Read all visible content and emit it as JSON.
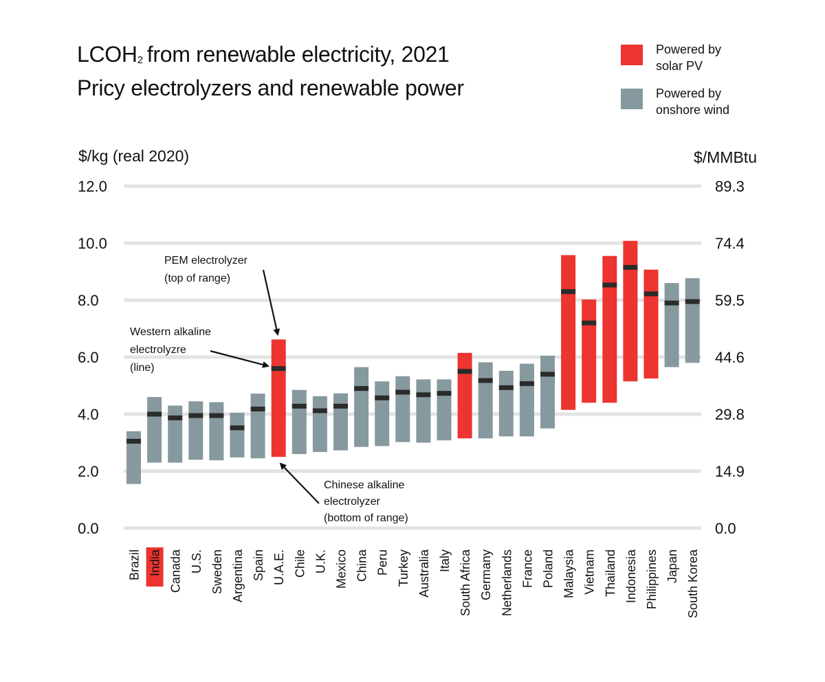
{
  "title": {
    "line1_prefix": "LCOH",
    "line1_sub": "2",
    "line1_suffix": "from renewable electricity, 2021",
    "line2": "Pricy electrolyzers and renewable power"
  },
  "legend": [
    {
      "label_line1": "Powered by",
      "label_line2": "solar PV",
      "color": "#EC3430"
    },
    {
      "label_line1": "Powered by",
      "label_line2": "onshore wind",
      "color": "#86999F"
    }
  ],
  "units": {
    "left": "$/kg (real 2020)",
    "right": "$/MMBtu"
  },
  "annotations": [
    {
      "id": "pem",
      "lines": [
        "PEM electrolyzer",
        "(top of range)"
      ]
    },
    {
      "id": "western",
      "lines": [
        "Western alkaline",
        "electrolyzre",
        "(line)"
      ]
    },
    {
      "id": "chinese",
      "lines": [
        "Chinese alkaline",
        "electrolyzer",
        "(bottom of range)"
      ]
    }
  ],
  "chart_data": {
    "type": "bar",
    "subtype": "floating-range with marker",
    "title": "LCOH2 from renewable electricity, 2021 — Pricy electrolyzers and renewable power",
    "ylabel": "$/kg (real 2020)",
    "ylabel_right": "$/MMBtu",
    "ylim": [
      0,
      12
    ],
    "yticks": [
      "0.0",
      "2.0",
      "4.0",
      "6.0",
      "8.0",
      "10.0",
      "12.0"
    ],
    "yticks_right": [
      "0.0",
      "14.9",
      "29.8",
      "44.6",
      "59.5",
      "74.4",
      "89.3"
    ],
    "grid": true,
    "legend_position": "top-right",
    "highlight_category": "India",
    "highlight_color": "#EC3430",
    "colors": {
      "solar": "#EC3430",
      "wind": "#86999F",
      "marker": "#2B2B2B",
      "grid": "#E3E3E3"
    },
    "categories": [
      "Brazil",
      "India",
      "Canada",
      "U.S.",
      "Sweden",
      "Argentina",
      "Spain",
      "U.A.E.",
      "Chile",
      "U.K.",
      "Mexico",
      "China",
      "Peru",
      "Turkey",
      "Australia",
      "Italy",
      "South Africa",
      "Germany",
      "Netherlands",
      "France",
      "Poland",
      "Malaysia",
      "Vietnam",
      "Thailand",
      "Indonesia",
      "Philippines",
      "Japan",
      "South Korea"
    ],
    "series": [
      {
        "name": "Chinese alkaline electrolyzer (bottom of range)",
        "values": [
          1.55,
          2.3,
          2.3,
          2.4,
          2.38,
          2.48,
          2.45,
          2.5,
          2.6,
          2.67,
          2.73,
          2.85,
          2.88,
          3.02,
          3.0,
          3.08,
          3.15,
          3.15,
          3.22,
          3.22,
          3.5,
          4.15,
          4.4,
          4.4,
          5.15,
          5.25,
          5.65,
          5.8
        ]
      },
      {
        "name": "Western alkaline electrolyzer (line)",
        "values": [
          3.05,
          4.0,
          3.87,
          3.95,
          3.95,
          3.52,
          4.18,
          5.6,
          4.28,
          4.12,
          4.28,
          4.9,
          4.57,
          4.77,
          4.68,
          4.73,
          5.5,
          5.18,
          4.93,
          5.07,
          5.4,
          8.3,
          7.2,
          8.53,
          9.15,
          8.22,
          7.9,
          7.95
        ]
      },
      {
        "name": "PEM electrolyzer (top of range)",
        "values": [
          3.4,
          4.6,
          4.3,
          4.45,
          4.42,
          4.05,
          4.72,
          6.62,
          4.85,
          4.63,
          4.73,
          5.65,
          5.15,
          5.33,
          5.22,
          5.22,
          6.15,
          5.82,
          5.52,
          5.77,
          6.05,
          9.58,
          8.02,
          9.55,
          10.08,
          9.07,
          8.6,
          8.77
        ]
      }
    ],
    "power_source": [
      "wind",
      "wind",
      "wind",
      "wind",
      "wind",
      "wind",
      "wind",
      "solar",
      "wind",
      "wind",
      "wind",
      "wind",
      "wind",
      "wind",
      "wind",
      "wind",
      "solar",
      "wind",
      "wind",
      "wind",
      "wind",
      "solar",
      "solar",
      "solar",
      "solar",
      "solar",
      "wind",
      "wind"
    ]
  }
}
